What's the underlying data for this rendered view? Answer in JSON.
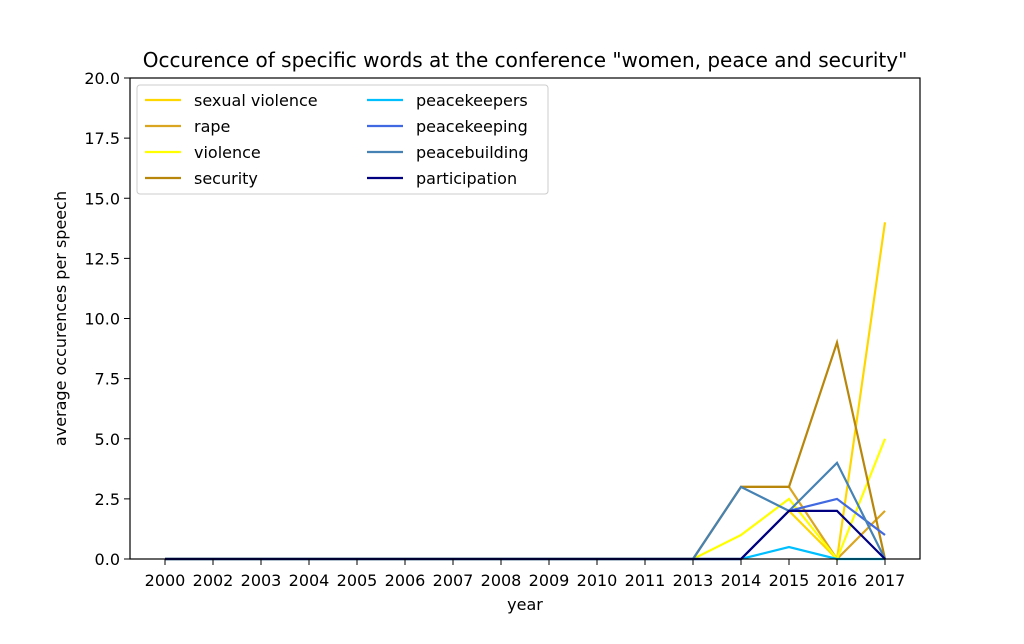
{
  "chart_data": {
    "type": "line",
    "title": "Occurence of specific words at the conference \"women, peace and security\"",
    "xlabel": "year",
    "ylabel": "average occurences per speech",
    "ylim": [
      0,
      20
    ],
    "yticks": [
      "0.0",
      "2.5",
      "5.0",
      "7.5",
      "10.0",
      "12.5",
      "15.0",
      "17.5",
      "20.0"
    ],
    "categories": [
      "2000",
      "2002",
      "2003",
      "2004",
      "2005",
      "2006",
      "2007",
      "2008",
      "2009",
      "2010",
      "2011",
      "2013",
      "2014",
      "2015",
      "2016",
      "2017"
    ],
    "grid": false,
    "legend_placement": "top-left",
    "series": [
      {
        "name": "sexual violence",
        "color": "#ffd700",
        "values": [
          0,
          0,
          0,
          0,
          0,
          0,
          0,
          0,
          0,
          0,
          0,
          0,
          0,
          2,
          0,
          14
        ]
      },
      {
        "name": "rape",
        "color": "#daa520",
        "values": [
          0,
          0,
          0,
          0,
          0,
          0,
          0,
          0,
          0,
          0,
          0,
          0,
          3,
          3,
          0,
          2
        ]
      },
      {
        "name": "violence",
        "color": "#ffff00",
        "values": [
          0,
          0,
          0,
          0,
          0,
          0,
          0,
          0,
          0,
          0,
          0,
          0,
          1,
          2.5,
          0,
          5
        ]
      },
      {
        "name": "security",
        "color": "#b8860b",
        "values": [
          0,
          0,
          0,
          0,
          0,
          0,
          0,
          0,
          0,
          0,
          0,
          0,
          3,
          3,
          9,
          0
        ]
      },
      {
        "name": "peacekeepers",
        "color": "#00bfff",
        "values": [
          0,
          0,
          0,
          0,
          0,
          0,
          0,
          0,
          0,
          0,
          0,
          0,
          0,
          0.5,
          0,
          0
        ]
      },
      {
        "name": "peacekeeping",
        "color": "#4169e1",
        "values": [
          0,
          0,
          0,
          0,
          0,
          0,
          0,
          0,
          0,
          0,
          0,
          0,
          0,
          2,
          2.5,
          1
        ]
      },
      {
        "name": "peacebuilding",
        "color": "#4682b4",
        "values": [
          0,
          0,
          0,
          0,
          0,
          0,
          0,
          0,
          0,
          0,
          0,
          0,
          3,
          2,
          4,
          0
        ]
      },
      {
        "name": "participation",
        "color": "#000080",
        "values": [
          0,
          0,
          0,
          0,
          0,
          0,
          0,
          0,
          0,
          0,
          0,
          0,
          0,
          2,
          2,
          0
        ]
      }
    ]
  }
}
